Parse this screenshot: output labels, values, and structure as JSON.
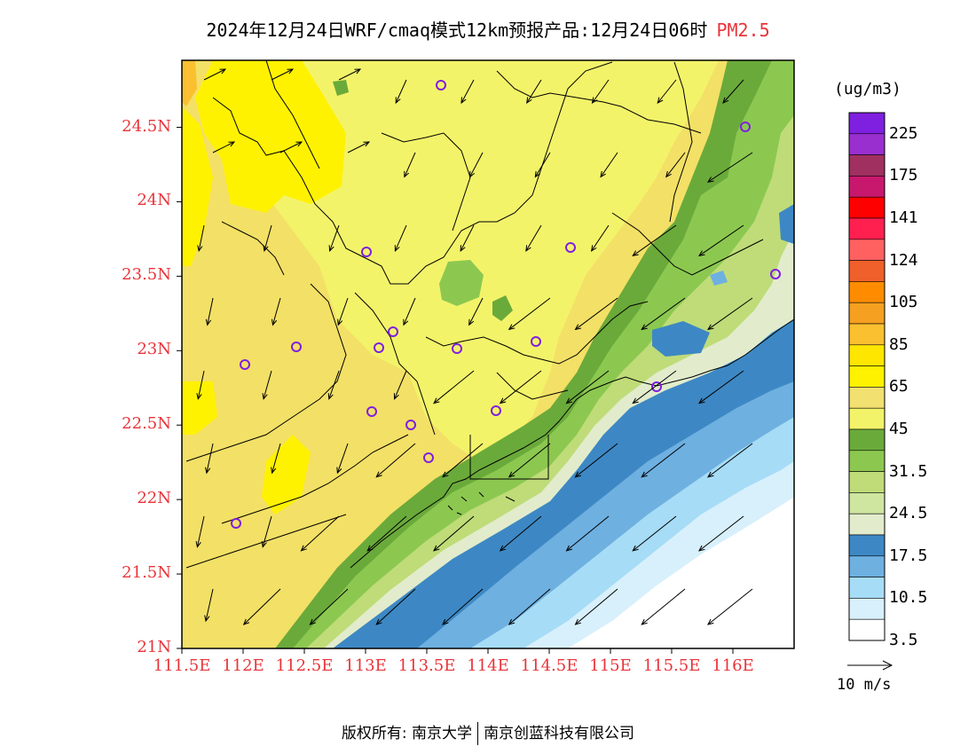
{
  "title": {
    "main": "2024年12月24日WRF/cmaq模式12km预报产品:12月24日06时",
    "variable": "PM2.5"
  },
  "map": {
    "lat_labels": [
      "24.5N",
      "24N",
      "23.5N",
      "23N",
      "22.5N",
      "22N",
      "21.5N",
      "21N"
    ],
    "lon_labels": [
      "111.5E",
      "112E",
      "112.5E",
      "113E",
      "113.5E",
      "114E",
      "114.5E",
      "115E",
      "115.5E",
      "116E"
    ],
    "lat_range": [
      21,
      24.95
    ],
    "lon_range": [
      111.5,
      116.5
    ]
  },
  "colorbar": {
    "unit": "(ug/m3)",
    "labels": [
      "225",
      "175",
      "141",
      "124",
      "105",
      "85",
      "65",
      "45",
      "31.5",
      "24.5",
      "17.5",
      "10.5",
      "3.5"
    ],
    "colors": [
      "#7f1fdf",
      "#9a2fcf",
      "#a0305f",
      "#c8186e",
      "#ff0000",
      "#ff2050",
      "#ff6060",
      "#f0602a",
      "#ff8c00",
      "#f5a020",
      "#fbc030",
      "#ffe600",
      "#fff200",
      "#f2e070",
      "#f3f36a",
      "#6aaa3a",
      "#8cc850",
      "#bfdc78",
      "#cfe6a0",
      "#e2eccc",
      "#3d88c4",
      "#6eb0e0",
      "#a6dcf6",
      "#d8f0fb",
      "#ffffff"
    ]
  },
  "wind_ref": {
    "label": "10 m/s"
  },
  "footer": {
    "copyright": "版权所有: 南京大学",
    "company": "南京创蓝科技有限公司"
  }
}
